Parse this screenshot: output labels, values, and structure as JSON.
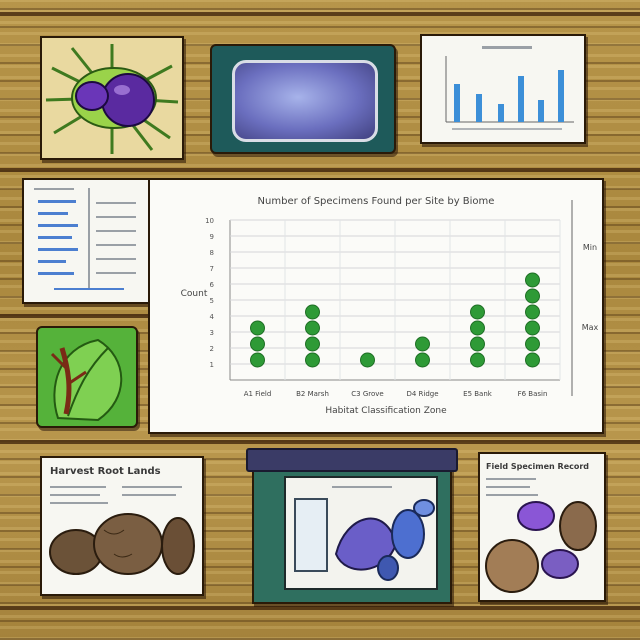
{
  "chart_data": {
    "type": "scatter",
    "title": "Number of Specimens Found per Site by Biome",
    "ylabel": "Count",
    "xlabel": "Habitat Classification Zone",
    "categories": [
      "A1 Field",
      "B2 Marsh",
      "C3 Grove",
      "D4 Ridge",
      "E5 Bank",
      "F6 Basin"
    ],
    "values": [
      3,
      4,
      1,
      2,
      4,
      6
    ],
    "ylim": [
      0,
      10
    ],
    "yticks": [
      1,
      2,
      3,
      4,
      5,
      6,
      7,
      8,
      9,
      10
    ],
    "grid": true,
    "marker_color": "#2e9a36",
    "right_labels": [
      "Min",
      "Max"
    ]
  },
  "colors": {
    "wood": "#b08f45",
    "paper": "#f7f7f2",
    "accent_green": "#2e9a36",
    "accent_blue": "#4c7fd0"
  },
  "docs": {
    "bottom_left_title": "Harvest Root Lands",
    "bottom_right_title": "Field Specimen Record"
  },
  "icons": {
    "top_left": "purple-fruit-icon",
    "monitor": "display-screen-icon",
    "leaf": "leaf-icon",
    "bottom_left": "root-vegetable-icon",
    "tray": "specimen-tray-icon",
    "bottom_right": "specimen-collage-icon"
  }
}
